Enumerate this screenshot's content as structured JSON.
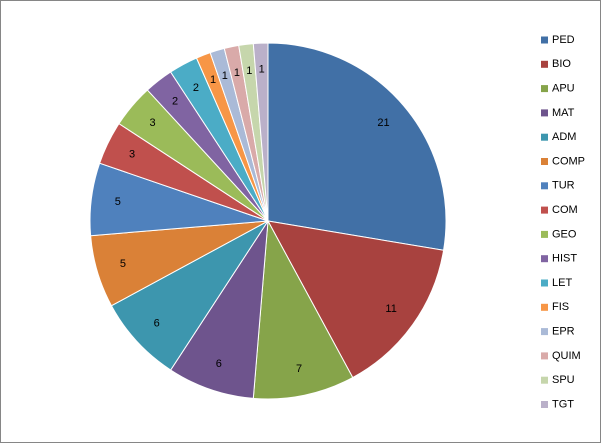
{
  "chart_data": {
    "type": "pie",
    "categories": [
      "PED",
      "BIO",
      "APU",
      "MAT",
      "ADM",
      "COMP",
      "TUR",
      "COM",
      "GEO",
      "HIST",
      "LET",
      "FIS",
      "EPR",
      "QUIM",
      "SPU",
      "TGT"
    ],
    "values": [
      21,
      11,
      7,
      6,
      6,
      5,
      5,
      3,
      3,
      2,
      2,
      1,
      1,
      1,
      1,
      1
    ],
    "colors": [
      "#4170a6",
      "#a8423f",
      "#86a44a",
      "#6e548d",
      "#3d96ae",
      "#da8137",
      "#4f81bd",
      "#c0504d",
      "#9bbb59",
      "#8064a2",
      "#4bacc6",
      "#f79646",
      "#aabad7",
      "#d9aaa9",
      "#c6d6ac",
      "#bab0c9"
    ],
    "legend": "right"
  }
}
